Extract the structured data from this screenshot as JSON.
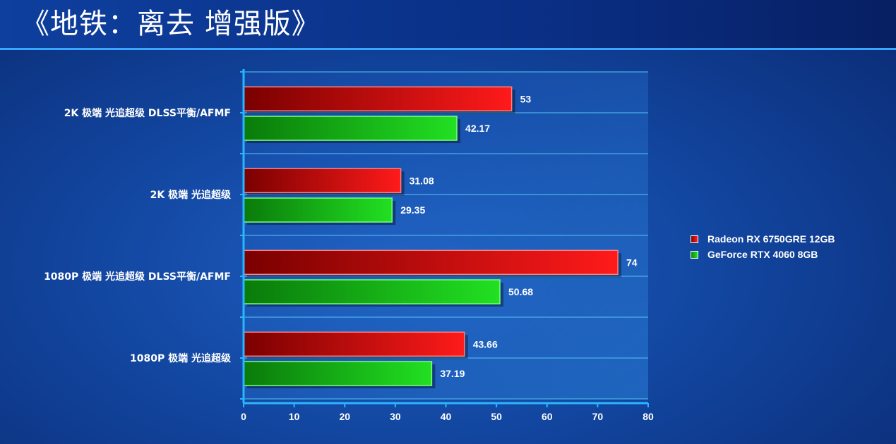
{
  "title": "《地铁：离去 增强版》",
  "colors": {
    "series_red": "#e00000",
    "series_green": "#16c216",
    "axis": "#29b6ff",
    "grid": "#4fb8f0"
  },
  "chart_data": {
    "type": "bar",
    "orientation": "horizontal",
    "categories": [
      "2K 极端 光追超级 DLSS平衡/AFMF",
      "2K 极端 光追超级",
      "1080P 极端 光追超级 DLSS平衡/AFMF",
      "1080P 极端 光追超级"
    ],
    "series": [
      {
        "name": "Radeon RX 6750GRE 12GB",
        "values": [
          53,
          31.08,
          74,
          43.66
        ]
      },
      {
        "name": "GeForce RTX 4060 8GB",
        "values": [
          42.17,
          29.35,
          50.68,
          37.19
        ]
      }
    ],
    "value_labels": [
      [
        "53",
        "31.08",
        "74",
        "43.66"
      ],
      [
        "42.17",
        "29.35",
        "50.68",
        "37.19"
      ]
    ],
    "xlim": [
      0,
      80
    ],
    "xticks": [
      "0",
      "10",
      "20",
      "30",
      "40",
      "50",
      "60",
      "70",
      "80"
    ],
    "grid": true,
    "legend_position": "right"
  }
}
